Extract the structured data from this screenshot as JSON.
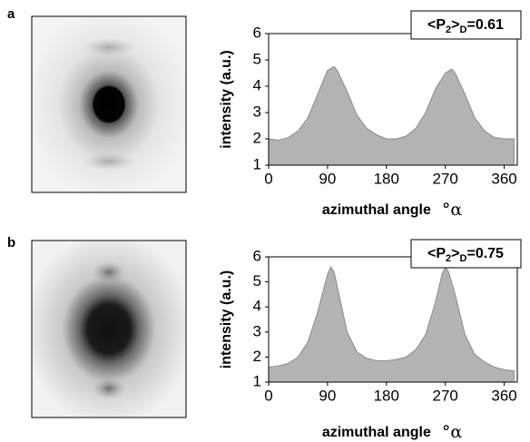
{
  "chart_data": [
    {
      "type": "area",
      "panel_label": "a",
      "y_label": "intensity (a.u.)",
      "x_label": "azimuthal angle",
      "x_unit": "°α",
      "annotation": {
        "open": "<P",
        "sub1": "2",
        "close": ">",
        "sub2": "D",
        "value": "=0.61"
      },
      "color": "#b3b3b3",
      "x": [
        0,
        15,
        30,
        45,
        60,
        75,
        90,
        100,
        105,
        120,
        135,
        150,
        165,
        180,
        195,
        210,
        225,
        240,
        255,
        270,
        280,
        285,
        300,
        315,
        330,
        345,
        360,
        375
      ],
      "values": [
        2.0,
        1.95,
        2.05,
        2.3,
        2.8,
        3.7,
        4.6,
        4.75,
        4.6,
        3.8,
        2.9,
        2.4,
        2.15,
        2.0,
        2.0,
        2.1,
        2.4,
        3.0,
        3.9,
        4.5,
        4.65,
        4.5,
        3.7,
        2.8,
        2.3,
        2.05,
        2.0,
        2.0
      ],
      "xlim": [
        0,
        380
      ],
      "xticks": [
        0,
        90,
        180,
        270,
        360
      ],
      "ylim": [
        1,
        6
      ],
      "yticks": [
        1,
        2,
        3,
        4,
        5,
        6
      ]
    },
    {
      "type": "area",
      "panel_label": "b",
      "y_label": "intensity (a.u.)",
      "x_label": "azimuthal angle",
      "x_unit": "°α",
      "annotation": {
        "open": "<P",
        "sub1": "2",
        "close": ">",
        "sub2": "D",
        "value": "=0.75"
      },
      "color": "#b3b3b3",
      "x": [
        0,
        15,
        30,
        45,
        60,
        75,
        90,
        95,
        100,
        105,
        120,
        135,
        150,
        165,
        180,
        195,
        210,
        225,
        240,
        255,
        265,
        270,
        275,
        285,
        300,
        315,
        330,
        345,
        360,
        375
      ],
      "values": [
        1.6,
        1.65,
        1.75,
        2.0,
        2.6,
        3.8,
        5.3,
        5.6,
        5.4,
        4.8,
        3.0,
        2.2,
        1.95,
        1.85,
        1.85,
        1.9,
        2.0,
        2.3,
        2.9,
        4.2,
        5.3,
        5.6,
        5.4,
        4.5,
        2.9,
        2.1,
        1.8,
        1.6,
        1.5,
        1.45
      ],
      "xlim": [
        0,
        380
      ],
      "xticks": [
        0,
        90,
        180,
        270,
        360
      ],
      "ylim": [
        1,
        6
      ],
      "yticks": [
        1,
        2,
        3,
        4,
        5,
        6
      ]
    }
  ]
}
